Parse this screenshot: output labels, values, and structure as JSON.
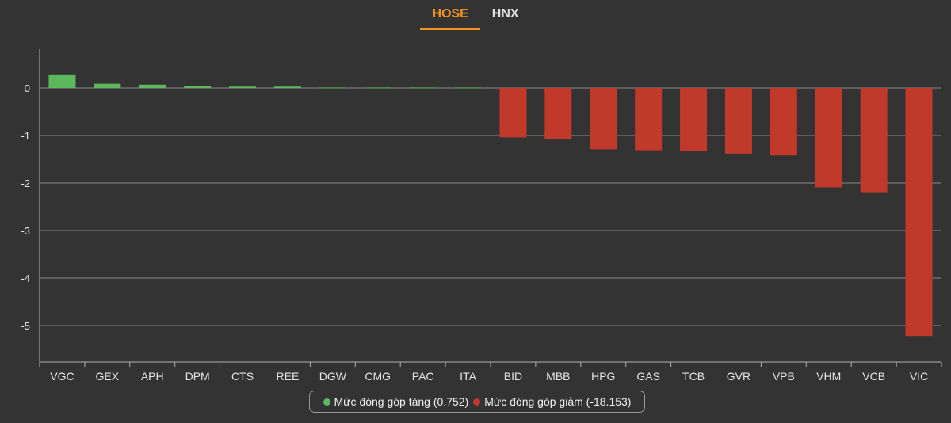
{
  "tabs": [
    {
      "label": "HOSE",
      "active": true
    },
    {
      "label": "HNX",
      "active": false
    }
  ],
  "colors": {
    "positive": "#5cb85c",
    "negative": "#c0392b",
    "accent": "#f7941d",
    "background": "#333333",
    "grid": "#8a8a8a"
  },
  "legend": {
    "increase": {
      "label": "Mức đóng góp tăng (0.752)",
      "color": "#5cb85c"
    },
    "decrease": {
      "label": "Mức đóng góp giảm (-18.153)",
      "color": "#c0392b"
    }
  },
  "chart_data": {
    "type": "bar",
    "categories": [
      "VGC",
      "GEX",
      "APH",
      "DPM",
      "CTS",
      "REE",
      "DGW",
      "CMG",
      "PAC",
      "ITA",
      "BID",
      "MBB",
      "HPG",
      "GAS",
      "TCB",
      "GVR",
      "VPB",
      "VHM",
      "VCB",
      "VIC"
    ],
    "values": [
      0.27,
      0.09,
      0.07,
      0.05,
      0.03,
      0.03,
      0.01,
      0.01,
      0.01,
      0.01,
      -1.04,
      -1.08,
      -1.29,
      -1.31,
      -1.33,
      -1.38,
      -1.42,
      -2.09,
      -2.21,
      -5.22
    ],
    "yticks": [
      0,
      -1,
      -2,
      -3,
      -4,
      -5
    ],
    "ylim": [
      -5.7,
      0.8
    ],
    "grid": true,
    "legend_position": "bottom-center",
    "title": "",
    "xlabel": "",
    "ylabel": ""
  }
}
